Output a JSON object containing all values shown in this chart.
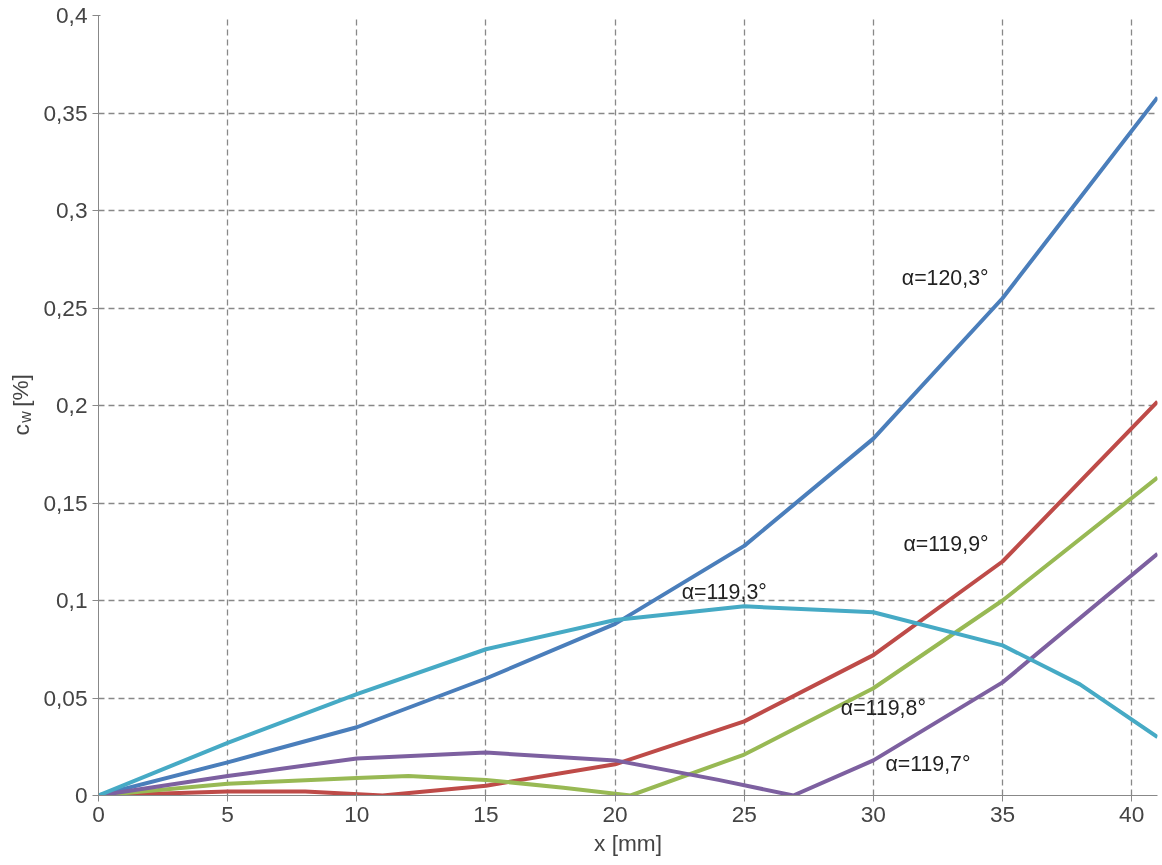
{
  "chart_data": {
    "type": "line",
    "xlabel": "x [mm]",
    "ylabel": "c$_{w}$ [%]",
    "xlim": [
      0,
      41
    ],
    "xticks": [
      0,
      5,
      10,
      15,
      20,
      25,
      30,
      35,
      40
    ],
    "ylim": [
      0,
      0.4
    ],
    "yticks": [
      {
        "value": 0,
        "label": "0"
      },
      {
        "value": 0.05,
        "label": "0,05"
      },
      {
        "value": 0.1,
        "label": "0,1"
      },
      {
        "value": 0.15,
        "label": "0,15"
      },
      {
        "value": 0.2,
        "label": "0,2"
      },
      {
        "value": 0.25,
        "label": "0,25"
      },
      {
        "value": 0.3,
        "label": "0,3"
      },
      {
        "value": 0.35,
        "label": "0,35"
      },
      {
        "value": 0.4,
        "label": "0,4"
      }
    ],
    "grid": true,
    "line_style": "solid",
    "marker": "none",
    "series": [
      {
        "name": "α=120,3°",
        "color": "#4a7ebb",
        "x": [
          0,
          5,
          10,
          15,
          20,
          25,
          30,
          35,
          41
        ],
        "values": [
          0,
          0.017,
          0.035,
          0.06,
          0.088,
          0.128,
          0.183,
          0.255,
          0.358
        ]
      },
      {
        "name": "α=119,9°",
        "color": "#be4b48",
        "x": [
          0,
          5,
          8,
          11,
          15,
          20,
          25,
          30,
          35,
          41
        ],
        "values": [
          0,
          0.002,
          0.002,
          0,
          0.005,
          0.016,
          0.038,
          0.072,
          0.12,
          0.202
        ]
      },
      {
        "name": "α=119,8°",
        "color": "#98b954",
        "x": [
          0,
          5,
          10,
          12,
          15,
          18,
          20.6,
          25,
          30,
          35,
          41
        ],
        "values": [
          0,
          0.006,
          0.009,
          0.01,
          0.008,
          0.004,
          0,
          0.021,
          0.055,
          0.1,
          0.163
        ]
      },
      {
        "name": "α=119,7°",
        "color": "#7d60a0",
        "x": [
          0,
          5,
          10,
          15,
          20,
          24,
          26.9,
          30,
          35,
          41
        ],
        "values": [
          0,
          0.01,
          0.019,
          0.022,
          0.018,
          0.008,
          0,
          0.018,
          0.058,
          0.124
        ]
      },
      {
        "name": "α=119,3°",
        "color": "#46aac5",
        "x": [
          0,
          5,
          10,
          15,
          20,
          25,
          30,
          35,
          38,
          41
        ],
        "values": [
          0,
          0.027,
          0.052,
          0.075,
          0.09,
          0.097,
          0.094,
          0.077,
          0.057,
          0.03
        ]
      }
    ]
  }
}
